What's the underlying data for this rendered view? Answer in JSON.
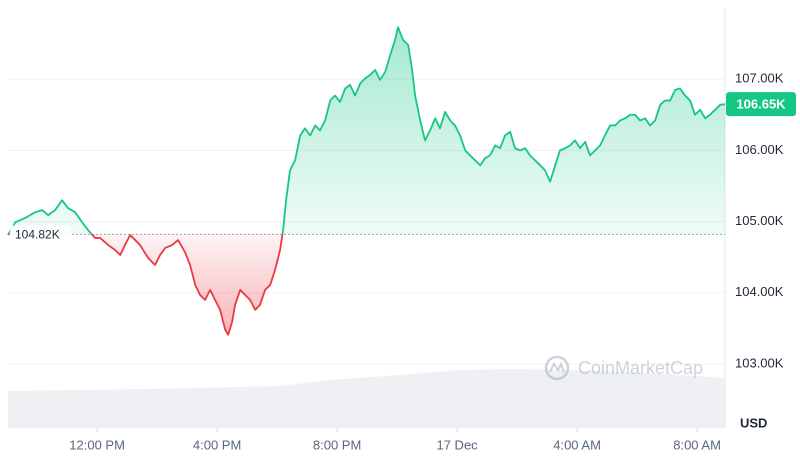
{
  "chart_data": {
    "type": "area",
    "x": [
      9.03,
      9.27,
      9.6,
      9.93,
      10.17,
      10.37,
      10.6,
      10.83,
      11.03,
      11.27,
      11.5,
      11.7,
      11.93,
      12.1,
      12.37,
      12.6,
      12.77,
      12.93,
      13.1,
      13.27,
      13.43,
      13.7,
      13.93,
      14.1,
      14.27,
      14.5,
      14.7,
      14.93,
      15.1,
      15.27,
      15.43,
      15.6,
      15.77,
      15.93,
      16.1,
      16.27,
      16.37,
      16.5,
      16.6,
      16.77,
      16.93,
      17.1,
      17.27,
      17.43,
      17.6,
      17.77,
      17.93,
      18.1,
      18.2,
      18.3,
      18.43,
      18.6,
      18.77,
      18.93,
      19.1,
      19.27,
      19.43,
      19.6,
      19.77,
      19.93,
      20.1,
      20.27,
      20.43,
      20.6,
      20.77,
      20.93,
      21.1,
      21.27,
      21.43,
      21.6,
      21.77,
      21.93,
      22.03,
      22.2,
      22.37,
      22.5,
      22.6,
      22.77,
      22.93,
      23.1,
      23.27,
      23.43,
      23.6,
      23.77,
      23.93,
      24.1,
      24.27,
      24.43,
      24.6,
      24.77,
      24.93,
      25.1,
      25.27,
      25.43,
      25.6,
      25.77,
      25.93,
      26.1,
      26.27,
      26.43,
      26.6,
      26.77,
      26.93,
      27.1,
      27.27,
      27.43,
      27.6,
      27.77,
      27.93,
      28.1,
      28.27,
      28.43,
      28.6,
      28.77,
      28.93,
      29.1,
      29.27,
      29.43,
      29.6,
      29.77,
      29.93,
      30.1,
      30.27,
      30.43,
      30.6,
      30.77,
      30.93,
      31.1,
      31.27,
      31.43,
      31.6,
      31.77,
      31.93,
      32.1,
      32.27,
      32.43,
      32.6,
      32.77,
      32.93
    ],
    "values": [
      104810,
      104990,
      105050,
      105130,
      105160,
      105090,
      105160,
      105300,
      105190,
      105130,
      104990,
      104880,
      104770,
      104770,
      104670,
      104600,
      104530,
      104670,
      104810,
      104740,
      104670,
      104490,
      104390,
      104530,
      104630,
      104670,
      104740,
      104570,
      104390,
      104110,
      103970,
      103900,
      104040,
      103900,
      103760,
      103480,
      103410,
      103590,
      103830,
      104040,
      103970,
      103900,
      103760,
      103830,
      104040,
      104110,
      104320,
      104600,
      104880,
      105300,
      105720,
      105860,
      106210,
      106310,
      106210,
      106350,
      106280,
      106420,
      106700,
      106770,
      106680,
      106870,
      106920,
      106770,
      106940,
      107010,
      107060,
      107130,
      106990,
      107100,
      107340,
      107550,
      107730,
      107550,
      107480,
      107130,
      106770,
      106420,
      106140,
      106280,
      106450,
      106310,
      106540,
      106420,
      106350,
      106210,
      106000,
      105930,
      105860,
      105790,
      105890,
      105930,
      106070,
      106030,
      106210,
      106260,
      106030,
      106000,
      106030,
      105930,
      105860,
      105790,
      105720,
      105560,
      105790,
      106000,
      106030,
      106070,
      106140,
      106030,
      106120,
      105930,
      106000,
      106070,
      106210,
      106350,
      106350,
      106420,
      106450,
      106500,
      106500,
      106420,
      106450,
      106350,
      106420,
      106640,
      106700,
      106700,
      106850,
      106870,
      106770,
      106700,
      106500,
      106570,
      106450,
      106500,
      106570,
      106640,
      106650
    ],
    "color_up": "#16c784",
    "color_down": "#ea3943",
    "baseline": {
      "value": 104820,
      "label": "104.82K"
    },
    "last": {
      "value": 106650,
      "label": "106.65K"
    },
    "xlim": [
      9.03,
      32.93
    ],
    "ylim": [
      102100,
      108000
    ],
    "xticks": [
      {
        "value": 12,
        "label": "12:00 PM"
      },
      {
        "value": 16,
        "label": "4:00 PM"
      },
      {
        "value": 20,
        "label": "8:00 PM"
      },
      {
        "value": 24,
        "label": "17 Dec"
      },
      {
        "value": 28,
        "label": "4:00 AM"
      },
      {
        "value": 32,
        "label": "8:00 AM"
      }
    ],
    "yticks": [
      {
        "value": 103000,
        "label": "103.00K"
      },
      {
        "value": 104000,
        "label": "104.00K"
      },
      {
        "value": 105000,
        "label": "105.00K"
      },
      {
        "value": 106000,
        "label": "106.00K"
      },
      {
        "value": 107000,
        "label": "107.00K"
      }
    ],
    "grid": true,
    "watermark": "CoinMarketCap",
    "unit": "USD"
  }
}
